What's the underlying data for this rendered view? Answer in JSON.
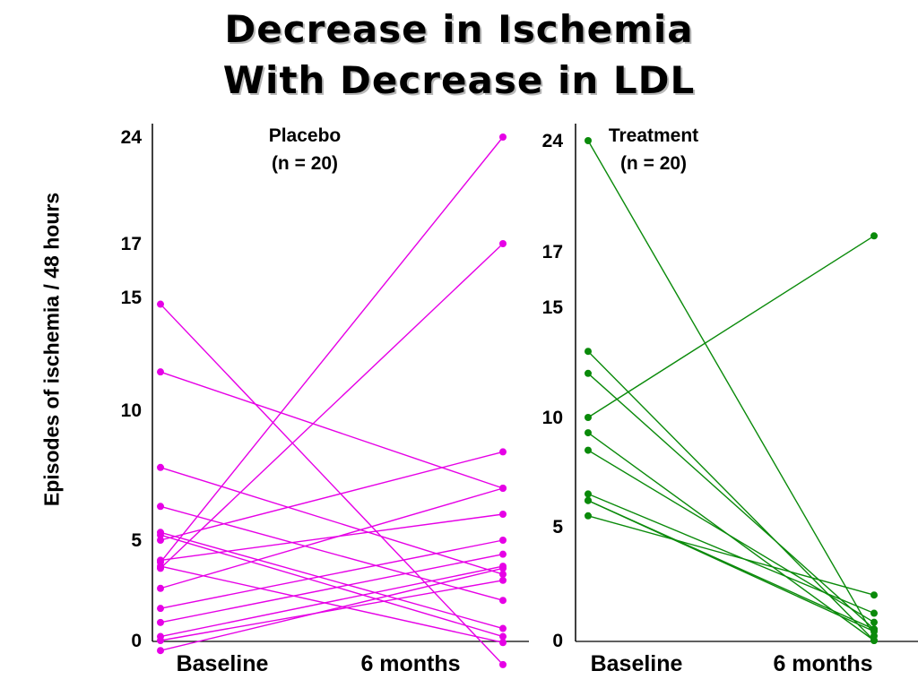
{
  "title_line1": "Decrease in Ischemia",
  "title_line2": "With Decrease in LDL",
  "ylabel": "Episodes of ischemia / 48 hours",
  "chart_data": [
    {
      "type": "line",
      "panel_title": [
        "Placebo",
        "(n = 20)"
      ],
      "color": "#e600e6",
      "categories": [
        "Baseline",
        "6 months"
      ],
      "yticks": [
        0,
        5,
        10,
        15,
        17,
        24
      ],
      "ylabel": "Episodes of ischemia / 48 hours",
      "series": [
        {
          "values": [
            14.7,
            -1.2
          ]
        },
        {
          "values": [
            11.7,
            7.0
          ]
        },
        {
          "values": [
            7.8,
            3.3
          ]
        },
        {
          "values": [
            6.3,
            2.0
          ]
        },
        {
          "values": [
            5.3,
            0.6
          ]
        },
        {
          "values": [
            5.0,
            8.4
          ]
        },
        {
          "values": [
            4.0,
            6.0
          ]
        },
        {
          "values": [
            3.9,
            24.0
          ]
        },
        {
          "values": [
            3.6,
            17.0
          ]
        },
        {
          "values": [
            2.6,
            7.0
          ]
        },
        {
          "values": [
            1.6,
            5.0
          ]
        },
        {
          "values": [
            0.9,
            4.3
          ]
        },
        {
          "values": [
            0.2,
            3.7
          ]
        },
        {
          "values": [
            0.0,
            3.0
          ]
        },
        {
          "values": [
            -0.5,
            3.6
          ]
        },
        {
          "values": [
            3.7,
            -0.1
          ]
        },
        {
          "values": [
            5.2,
            0.2
          ]
        }
      ]
    },
    {
      "type": "line",
      "panel_title": [
        "Treatment",
        "(n = 20)"
      ],
      "color": "#0a8a0a",
      "categories": [
        "Baseline",
        "6 months"
      ],
      "yticks": [
        0,
        5,
        10,
        15,
        17,
        24
      ],
      "ylabel": "Episodes of ischemia / 48 hours",
      "series": [
        {
          "values": [
            24.0,
            0.2
          ]
        },
        {
          "values": [
            13.0,
            0.0
          ]
        },
        {
          "values": [
            12.0,
            0.5
          ]
        },
        {
          "values": [
            10.0,
            18.0
          ]
        },
        {
          "values": [
            9.3,
            0.0
          ]
        },
        {
          "values": [
            8.5,
            0.8
          ]
        },
        {
          "values": [
            6.5,
            1.2
          ]
        },
        {
          "values": [
            6.2,
            0.5
          ]
        },
        {
          "values": [
            5.5,
            2.0
          ]
        },
        {
          "values": [
            6.2,
            0.4
          ]
        }
      ]
    }
  ]
}
